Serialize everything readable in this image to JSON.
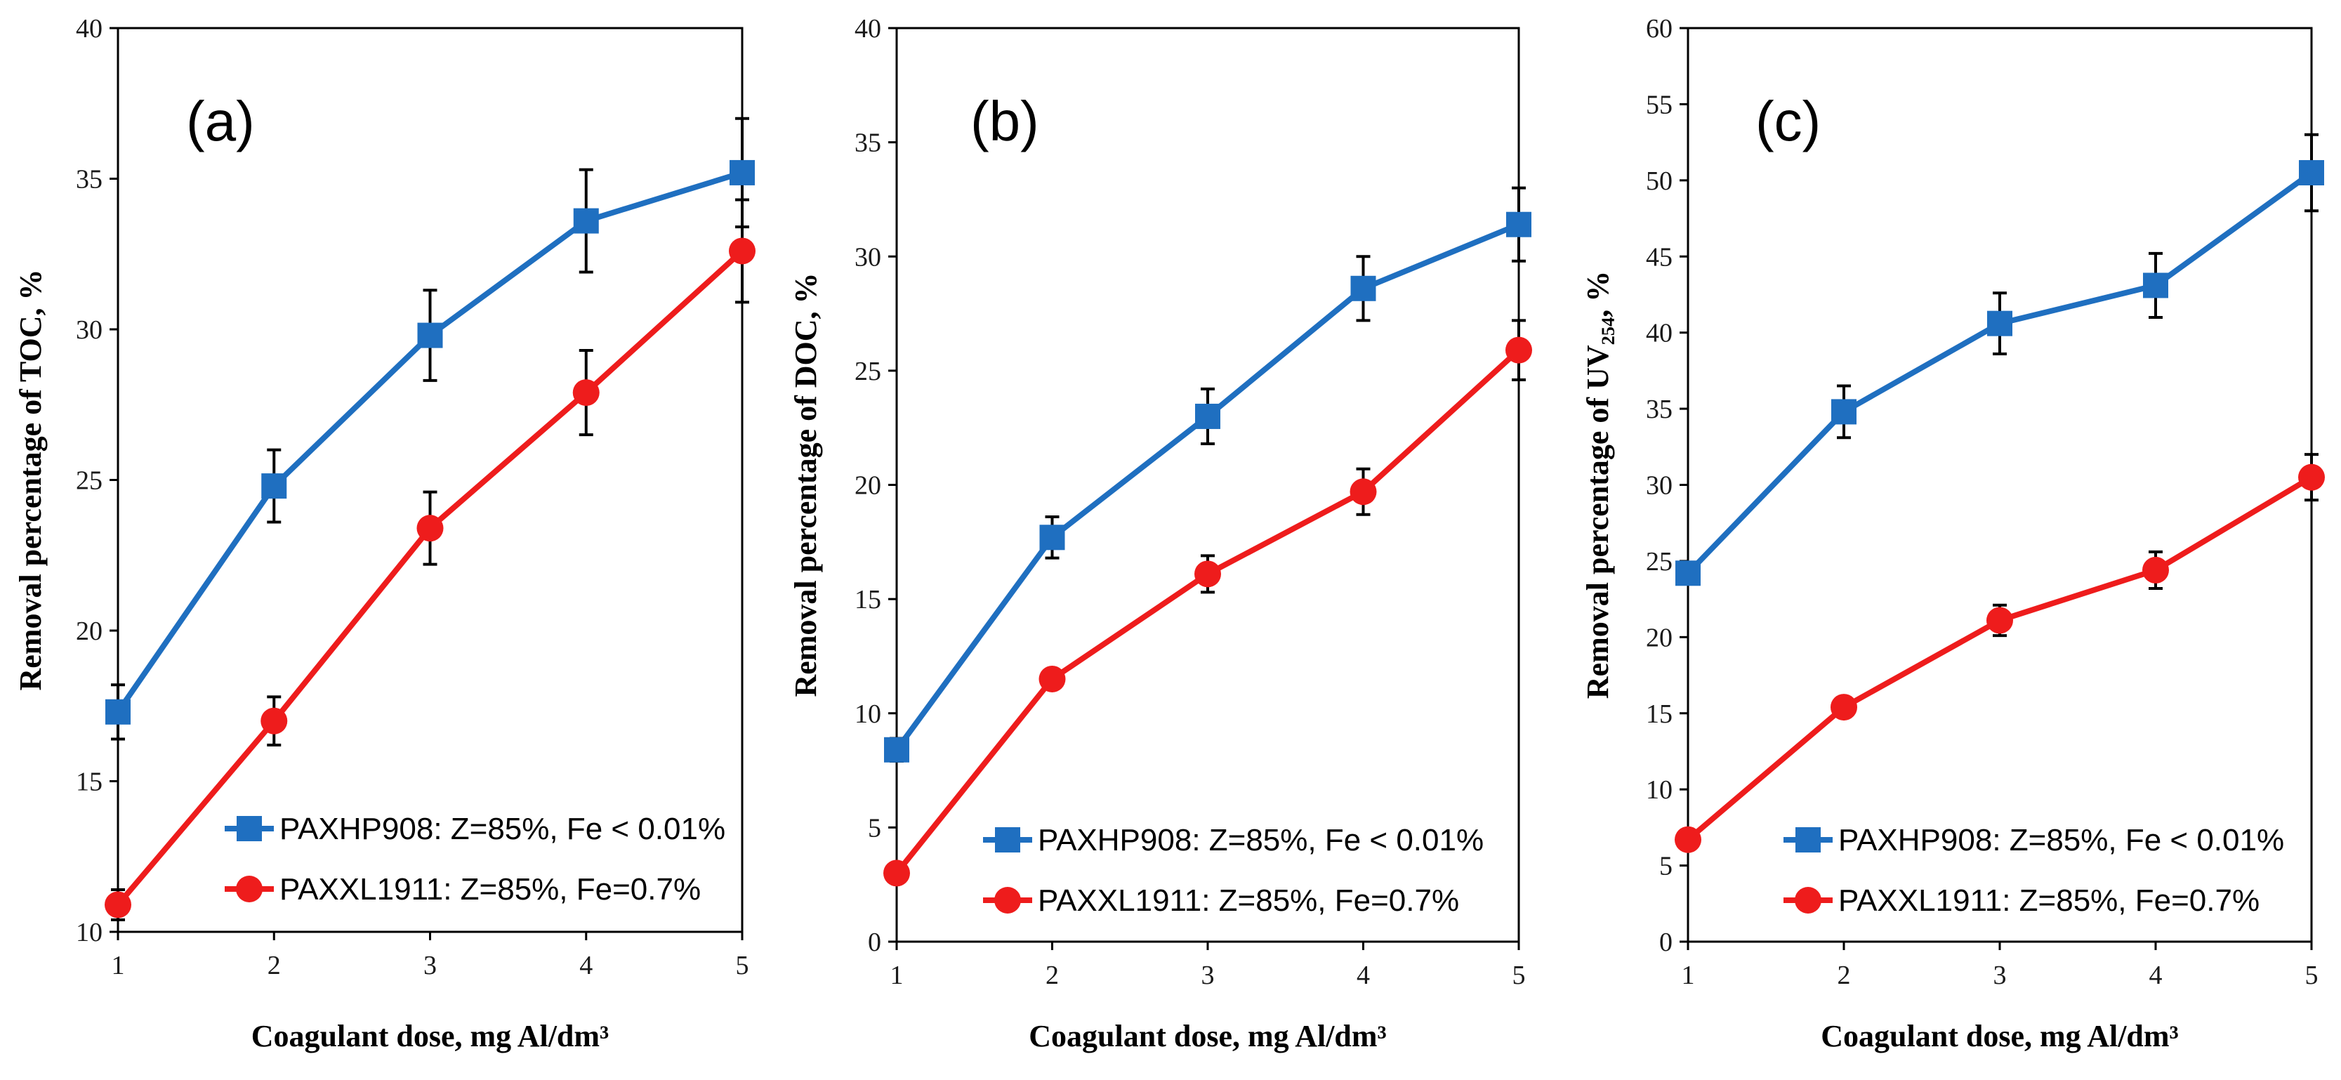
{
  "chart_data": [
    {
      "type": "line",
      "panel_label": "(a)",
      "xlabel": "Coagulant dose, mg Al/dm³",
      "ylabel": "Removal percentage of TOC, %",
      "x": [
        1,
        2,
        3,
        4,
        5
      ],
      "ylim": [
        10,
        40
      ],
      "yticks": [
        10,
        15,
        20,
        25,
        30,
        35,
        40
      ],
      "grid": false,
      "legend_position": "bottom-right",
      "series": [
        {
          "name": "PAXHP908: Z=85%, Fe < 0.01%",
          "marker": "square",
          "color": "#1f6fc0",
          "values": [
            17.3,
            24.8,
            29.8,
            33.6,
            35.2
          ],
          "errors": [
            0.9,
            1.2,
            1.5,
            1.7,
            1.8
          ]
        },
        {
          "name": "PAXXL1911: Z=85%, Fe=0.7%",
          "marker": "circle",
          "color": "#ee1c1c",
          "values": [
            10.9,
            17.0,
            23.4,
            27.9,
            32.6
          ],
          "errors": [
            0.5,
            0.8,
            1.2,
            1.4,
            1.7
          ]
        }
      ]
    },
    {
      "type": "line",
      "panel_label": "(b)",
      "xlabel": "Coagulant dose, mg Al/dm³",
      "ylabel": "Removal percentage of  DOC, %",
      "x": [
        1,
        2,
        3,
        4,
        5
      ],
      "ylim": [
        0,
        40
      ],
      "yticks": [
        0,
        5,
        10,
        15,
        20,
        25,
        30,
        35,
        40
      ],
      "grid": false,
      "legend_position": "bottom-right",
      "series": [
        {
          "name": "PAXHP908: Z=85%, Fe < 0.01%",
          "marker": "square",
          "color": "#1f6fc0",
          "values": [
            8.4,
            17.7,
            23.0,
            28.6,
            31.4
          ],
          "errors": [
            0.5,
            0.9,
            1.2,
            1.4,
            1.6
          ]
        },
        {
          "name": "PAXXL1911: Z=85%, Fe=0.7%",
          "marker": "circle",
          "color": "#ee1c1c",
          "values": [
            3.0,
            11.5,
            16.1,
            19.7,
            25.9
          ],
          "errors": [
            0.3,
            0.4,
            0.8,
            1.0,
            1.3
          ]
        }
      ]
    },
    {
      "type": "line",
      "panel_label": "(c)",
      "xlabel": "Coagulant dose, mg Al/dm³",
      "ylabel": "Removal percentage of UV₂₅₄, %",
      "x": [
        1,
        2,
        3,
        4,
        5
      ],
      "ylim": [
        0,
        60
      ],
      "yticks": [
        0,
        5,
        10,
        15,
        20,
        25,
        30,
        35,
        40,
        45,
        50,
        55,
        60
      ],
      "grid": false,
      "legend_position": "bottom-right",
      "series": [
        {
          "name": "PAXHP908: Z=85%, Fe < 0.01%",
          "marker": "square",
          "color": "#1f6fc0",
          "values": [
            24.2,
            34.8,
            40.6,
            43.1,
            50.5
          ],
          "errors": [
            0.7,
            1.7,
            2.0,
            2.1,
            2.5
          ]
        },
        {
          "name": "PAXXL1911: Z=85%, Fe=0.7%",
          "marker": "circle",
          "color": "#ee1c1c",
          "values": [
            6.7,
            15.4,
            21.1,
            24.4,
            30.5
          ],
          "errors": [
            0.4,
            0.6,
            1.0,
            1.2,
            1.5
          ]
        }
      ]
    }
  ]
}
